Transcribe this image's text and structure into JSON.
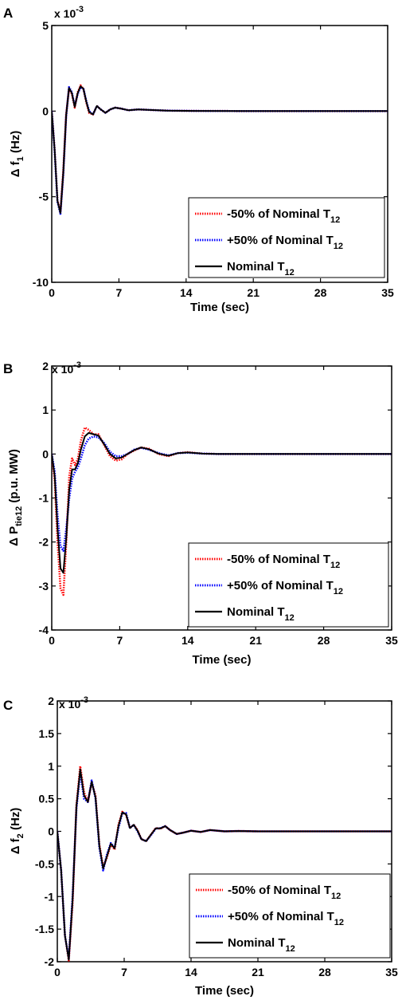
{
  "panels": [
    {
      "letter": "A",
      "exponent_base": "x 10",
      "exponent_power": "-3",
      "ylabel_main": "Δ f",
      "ylabel_sub": "1",
      "ylabel_unit": " (Hz)",
      "xlabel": "Time (sec)"
    },
    {
      "letter": "B",
      "exponent_base": "x 10",
      "exponent_power": "-3",
      "ylabel_main": "Δ P",
      "ylabel_sub": "tie12",
      "ylabel_unit": " (p.u. MW)",
      "xlabel": "Time (sec)"
    },
    {
      "letter": "C",
      "exponent_base": "x 10",
      "exponent_power": "-3",
      "ylabel_main": "Δ f",
      "ylabel_sub": "2",
      "ylabel_unit": " (Hz)",
      "xlabel": "Time (sec)"
    }
  ],
  "legend": {
    "minus50": {
      "main": "-50% of Nominal T",
      "sub": "12",
      "color": "#ff0000"
    },
    "plus50": {
      "main": "+50% of Nominal T",
      "sub": "12",
      "color": "#0000ff"
    },
    "nominal": {
      "main": "Nominal T",
      "sub": "12",
      "color": "#000000"
    }
  },
  "chart_data": [
    {
      "type": "line",
      "title": "",
      "xlabel": "Time (sec)",
      "ylabel": "Δ f1 (Hz)",
      "y_scale_note": "x 10^-3",
      "xlim": [
        0,
        35
      ],
      "ylim": [
        -10,
        5
      ],
      "xticks": [
        "0",
        "7",
        "14",
        "21",
        "28",
        "35"
      ],
      "yticks": [
        "5",
        "0",
        "-5",
        "-10"
      ],
      "ytick_values": [
        5,
        0,
        -5,
        -10
      ],
      "grid": false,
      "legend_position": "bottom-right",
      "series": [
        {
          "name": "-50% of Nominal T12",
          "color": "#ff0000",
          "style": "dotted",
          "x": [
            0,
            0.3,
            0.6,
            0.9,
            1.2,
            1.5,
            1.8,
            2.1,
            2.4,
            2.7,
            3.0,
            3.3,
            3.6,
            3.9,
            4.3,
            4.7,
            5.1,
            5.6,
            6.1,
            6.6,
            7.2,
            8.0,
            9.0,
            10.5,
            12,
            15,
            20,
            25,
            30,
            35
          ],
          "y": [
            0,
            -2.2,
            -5.2,
            -5.9,
            -3.5,
            -0.2,
            1.3,
            1.0,
            0.2,
            1.1,
            1.5,
            1.3,
            0.5,
            -0.1,
            -0.2,
            0.3,
            0.1,
            -0.1,
            0.1,
            0.2,
            0.15,
            0.05,
            0.1,
            0.06,
            0.03,
            0.01,
            0,
            0,
            0,
            0
          ]
        },
        {
          "name": "+50% of Nominal T12",
          "color": "#0000ff",
          "style": "dotted",
          "x": [
            0,
            0.3,
            0.6,
            0.9,
            1.2,
            1.5,
            1.8,
            2.1,
            2.4,
            2.7,
            3.0,
            3.3,
            3.6,
            3.9,
            4.3,
            4.7,
            5.1,
            5.6,
            6.1,
            6.6,
            7.2,
            8.0,
            9.0,
            10.5,
            12,
            15,
            20,
            25,
            30,
            35
          ],
          "y": [
            0,
            -2.3,
            -5.3,
            -6.0,
            -3.7,
            -0.3,
            1.4,
            1.1,
            0.3,
            1.0,
            1.4,
            1.3,
            0.6,
            0.0,
            -0.2,
            0.3,
            0.1,
            -0.1,
            0.1,
            0.2,
            0.15,
            0.05,
            0.1,
            0.06,
            0.03,
            0.01,
            0,
            0,
            0,
            0
          ]
        },
        {
          "name": "Nominal T12",
          "color": "#000000",
          "style": "solid",
          "x": [
            0,
            0.3,
            0.6,
            0.9,
            1.2,
            1.5,
            1.8,
            2.1,
            2.4,
            2.7,
            3.0,
            3.3,
            3.6,
            3.9,
            4.3,
            4.7,
            5.1,
            5.6,
            6.1,
            6.6,
            7.2,
            8.0,
            9.0,
            10.5,
            12,
            15,
            20,
            25,
            30,
            35
          ],
          "y": [
            0,
            -2.25,
            -5.25,
            -5.95,
            -3.6,
            -0.25,
            1.35,
            1.05,
            0.25,
            1.05,
            1.45,
            1.3,
            0.55,
            -0.05,
            -0.2,
            0.3,
            0.1,
            -0.1,
            0.1,
            0.2,
            0.15,
            0.05,
            0.1,
            0.06,
            0.03,
            0.01,
            0,
            0,
            0,
            0
          ]
        }
      ]
    },
    {
      "type": "line",
      "title": "",
      "xlabel": "Time (sec)",
      "ylabel": "Δ Ptie12 (p.u. MW)",
      "y_scale_note": "x 10^-3",
      "xlim": [
        0,
        35
      ],
      "ylim": [
        -4,
        2
      ],
      "xticks": [
        "0",
        "7",
        "14",
        "21",
        "28",
        "35"
      ],
      "yticks": [
        "2",
        "1",
        "0",
        "-1",
        "-2",
        "-3",
        "-4"
      ],
      "ytick_values": [
        2,
        1,
        0,
        -1,
        -2,
        -3,
        -4
      ],
      "grid": false,
      "legend_position": "bottom-right",
      "series": [
        {
          "name": "-50% of Nominal T12",
          "color": "#ff0000",
          "style": "dotted",
          "x": [
            0,
            0.3,
            0.6,
            0.9,
            1.2,
            1.5,
            1.8,
            2.1,
            2.4,
            2.7,
            3.0,
            3.4,
            3.8,
            4.3,
            4.8,
            5.4,
            6.0,
            6.6,
            7.2,
            7.8,
            8.5,
            9.2,
            10.0,
            11.0,
            12.0,
            13.0,
            14.0,
            15.5,
            17,
            20,
            25,
            30,
            35
          ],
          "y": [
            0,
            -0.6,
            -2.0,
            -3.05,
            -3.2,
            -2.0,
            -0.5,
            -0.1,
            -0.25,
            -0.1,
            0.3,
            0.6,
            0.55,
            0.45,
            0.45,
            0.2,
            -0.05,
            -0.15,
            -0.12,
            0.0,
            0.08,
            0.15,
            0.12,
            0.0,
            -0.05,
            0.02,
            0.04,
            0.01,
            0,
            0,
            0,
            0,
            0
          ]
        },
        {
          "name": "+50% of Nominal T12",
          "color": "#0000ff",
          "style": "dotted",
          "x": [
            0,
            0.3,
            0.6,
            0.9,
            1.2,
            1.5,
            1.8,
            2.1,
            2.4,
            2.7,
            3.0,
            3.4,
            3.8,
            4.3,
            4.8,
            5.4,
            6.0,
            6.6,
            7.2,
            7.8,
            8.5,
            9.2,
            10.0,
            11.0,
            12.0,
            13.0,
            14.0,
            15.5,
            17,
            20,
            25,
            30,
            35
          ],
          "y": [
            0,
            -0.4,
            -1.4,
            -2.1,
            -2.2,
            -1.7,
            -1.0,
            -0.55,
            -0.4,
            -0.3,
            -0.1,
            0.2,
            0.35,
            0.4,
            0.38,
            0.25,
            0.05,
            -0.05,
            -0.05,
            0.0,
            0.1,
            0.14,
            0.1,
            0.02,
            -0.03,
            0.02,
            0.03,
            0.01,
            0,
            0,
            0,
            0,
            0
          ]
        },
        {
          "name": "Nominal T12",
          "color": "#000000",
          "style": "solid",
          "x": [
            0,
            0.3,
            0.6,
            0.9,
            1.2,
            1.5,
            1.8,
            2.1,
            2.4,
            2.7,
            3.0,
            3.4,
            3.8,
            4.3,
            4.8,
            5.4,
            6.0,
            6.6,
            7.2,
            7.8,
            8.5,
            9.2,
            10.0,
            11.0,
            12.0,
            13.0,
            14.0,
            15.5,
            17,
            20,
            25,
            30,
            35
          ],
          "y": [
            0,
            -0.5,
            -1.7,
            -2.6,
            -2.7,
            -1.9,
            -0.8,
            -0.35,
            -0.35,
            -0.2,
            0.1,
            0.4,
            0.48,
            0.45,
            0.42,
            0.22,
            0.0,
            -0.1,
            -0.08,
            0.0,
            0.09,
            0.15,
            0.11,
            0.01,
            -0.04,
            0.02,
            0.035,
            0.01,
            0,
            0,
            0,
            0,
            0
          ]
        }
      ]
    },
    {
      "type": "line",
      "title": "",
      "xlabel": "Time (sec)",
      "ylabel": "Δ f2 (Hz)",
      "y_scale_note": "x 10^-3",
      "xlim": [
        0,
        35
      ],
      "ylim": [
        -2,
        2
      ],
      "xticks": [
        "0",
        "7",
        "14",
        "21",
        "28",
        "35"
      ],
      "yticks": [
        "2",
        "1.5",
        "1",
        "0.5",
        "0",
        "-0.5",
        "-1",
        "-1.5",
        "-2"
      ],
      "ytick_values": [
        2,
        1.5,
        1,
        0.5,
        0,
        -0.5,
        -1,
        -1.5,
        -2
      ],
      "grid": false,
      "legend_position": "bottom-right",
      "series": [
        {
          "name": "-50% of Nominal T12",
          "color": "#ff0000",
          "style": "dotted",
          "x": [
            0,
            0.4,
            0.8,
            1.2,
            1.6,
            2.0,
            2.4,
            2.8,
            3.2,
            3.6,
            4.0,
            4.4,
            4.8,
            5.2,
            5.6,
            6.0,
            6.4,
            6.8,
            7.2,
            7.6,
            8.0,
            8.4,
            8.8,
            9.3,
            9.8,
            10.3,
            10.8,
            11.3,
            11.8,
            12.5,
            13.2,
            14,
            15,
            16,
            17.5,
            19,
            21,
            25,
            30,
            35
          ],
          "y": [
            0,
            -0.6,
            -1.6,
            -1.98,
            -1.1,
            0.4,
            1.0,
            0.6,
            0.45,
            0.75,
            0.55,
            -0.2,
            -0.55,
            -0.4,
            -0.2,
            -0.28,
            0.1,
            0.3,
            0.25,
            0.05,
            0.1,
            0.02,
            -0.12,
            -0.15,
            -0.05,
            0.05,
            0.04,
            0.08,
            0.02,
            -0.04,
            -0.02,
            0.01,
            -0.01,
            0.02,
            0.0,
            0.005,
            0,
            0,
            0,
            0
          ]
        },
        {
          "name": "+50% of Nominal T12",
          "color": "#0000ff",
          "style": "dotted",
          "x": [
            0,
            0.4,
            0.8,
            1.2,
            1.6,
            2.0,
            2.4,
            2.8,
            3.2,
            3.6,
            4.0,
            4.4,
            4.8,
            5.2,
            5.6,
            6.0,
            6.4,
            6.8,
            7.2,
            7.6,
            8.0,
            8.4,
            8.8,
            9.3,
            9.8,
            10.3,
            10.8,
            11.3,
            11.8,
            12.5,
            13.2,
            14,
            15,
            16,
            17.5,
            19,
            21,
            25,
            30,
            35
          ],
          "y": [
            0,
            -0.6,
            -1.6,
            -1.95,
            -1.0,
            0.35,
            0.9,
            0.5,
            0.45,
            0.78,
            0.5,
            -0.25,
            -0.6,
            -0.35,
            -0.18,
            -0.25,
            0.05,
            0.28,
            0.28,
            0.05,
            0.1,
            0.0,
            -0.12,
            -0.15,
            -0.06,
            0.04,
            0.05,
            0.08,
            0.02,
            -0.04,
            -0.02,
            0.01,
            -0.01,
            0.02,
            0.0,
            0.005,
            0,
            0,
            0,
            0
          ]
        },
        {
          "name": "Nominal T12",
          "color": "#000000",
          "style": "solid",
          "x": [
            0,
            0.4,
            0.8,
            1.2,
            1.6,
            2.0,
            2.4,
            2.8,
            3.2,
            3.6,
            4.0,
            4.4,
            4.8,
            5.2,
            5.6,
            6.0,
            6.4,
            6.8,
            7.2,
            7.6,
            8.0,
            8.4,
            8.8,
            9.3,
            9.8,
            10.3,
            10.8,
            11.3,
            11.8,
            12.5,
            13.2,
            14,
            15,
            16,
            17.5,
            19,
            21,
            25,
            30,
            35
          ],
          "y": [
            0,
            -0.6,
            -1.6,
            -1.97,
            -1.05,
            0.38,
            0.95,
            0.55,
            0.45,
            0.76,
            0.52,
            -0.22,
            -0.57,
            -0.38,
            -0.19,
            -0.26,
            0.08,
            0.29,
            0.26,
            0.05,
            0.1,
            0.01,
            -0.12,
            -0.15,
            -0.05,
            0.045,
            0.045,
            0.08,
            0.02,
            -0.04,
            -0.02,
            0.01,
            -0.01,
            0.02,
            0.0,
            0.005,
            0,
            0,
            0,
            0
          ]
        }
      ]
    }
  ]
}
